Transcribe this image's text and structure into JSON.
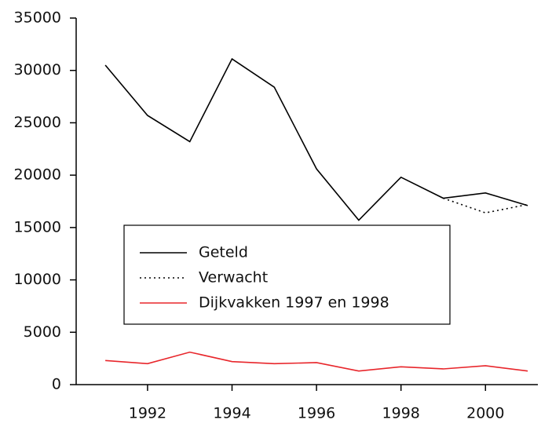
{
  "chart_data": {
    "type": "line",
    "x": [
      1991,
      1992,
      1993,
      1994,
      1995,
      1996,
      1997,
      1998,
      1999,
      2000,
      2001
    ],
    "series": [
      {
        "name": "Geteld",
        "color": "#000000",
        "dash": "solid",
        "values": [
          30500,
          25700,
          23200,
          31100,
          28400,
          20600,
          15700,
          19800,
          17800,
          18300,
          17100
        ]
      },
      {
        "name": "Verwacht",
        "color": "#000000",
        "dash": "dotted",
        "values": [
          null,
          null,
          null,
          null,
          null,
          null,
          null,
          null,
          17800,
          16400,
          17200
        ]
      },
      {
        "name": "Dijkvakken 1997 en 1998",
        "color": "#e8262b",
        "dash": "solid",
        "values": [
          2300,
          2000,
          3100,
          2200,
          2000,
          2100,
          1300,
          1700,
          1500,
          1800,
          1300
        ]
      }
    ],
    "xlim": [
      1990.31,
      2001.24
    ],
    "xticks": [
      1992,
      1994,
      1996,
      1998,
      2000
    ],
    "ylim": [
      0,
      35000
    ],
    "yticks": [
      0,
      5000,
      10000,
      15000,
      20000,
      25000,
      30000,
      35000
    ],
    "grid": false
  }
}
